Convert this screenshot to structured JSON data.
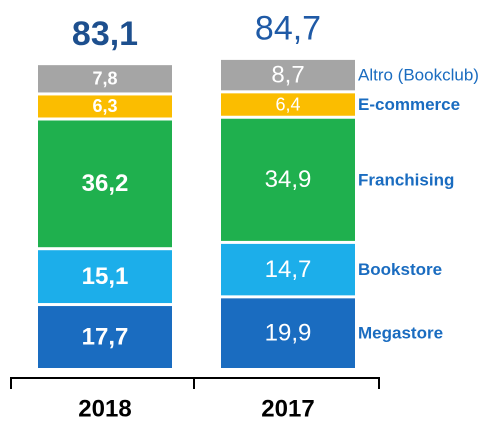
{
  "chart_data": {
    "type": "stacked_bar",
    "categories": [
      "2018",
      "2017"
    ],
    "series": [
      {
        "name": "Megastore",
        "color": "#1a6cc0",
        "values": [
          17.7,
          19.9
        ],
        "value_labels": [
          "17,7",
          "19,9"
        ]
      },
      {
        "name": "Bookstore",
        "color": "#1caeea",
        "values": [
          15.1,
          14.7
        ],
        "value_labels": [
          "15,1",
          "14,7"
        ]
      },
      {
        "name": "Franchising",
        "color": "#1fb04e",
        "values": [
          36.2,
          34.9
        ],
        "value_labels": [
          "36,2",
          "34,9"
        ]
      },
      {
        "name": "E-commerce",
        "color": "#fbbd00",
        "values": [
          6.3,
          6.4
        ],
        "value_labels": [
          "6,3",
          "6,4"
        ]
      },
      {
        "name": "Altro (Bookclub)",
        "color": "#a5a5a5",
        "values": [
          7.8,
          8.7
        ],
        "value_labels": [
          "7,8",
          "8,7"
        ]
      }
    ],
    "totals": [
      83.1,
      84.7
    ],
    "total_labels": [
      "83,1",
      "84,7"
    ]
  }
}
